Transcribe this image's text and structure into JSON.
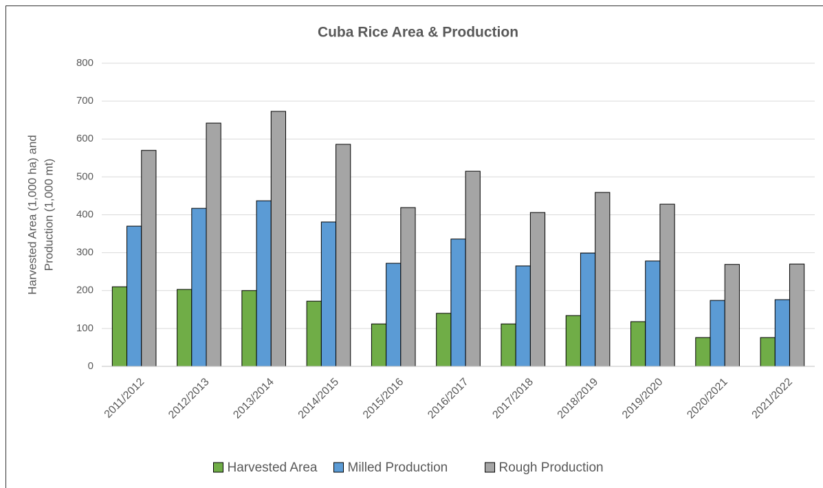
{
  "chart_data": {
    "type": "bar",
    "title": "Cuba Rice Area & Production",
    "y_label": [
      "Harvested Area (1,000 ha) and",
      "Production (1,000 mt)"
    ],
    "categories": [
      "2011/2012",
      "2012/2013",
      "2013/2014",
      "2014/2015",
      "2015/2016",
      "2016/2017",
      "2017/2018",
      "2018/2019",
      "2019/2020",
      "2020/2021",
      "2021/2022"
    ],
    "series": [
      {
        "name": "Harvested Area",
        "color": "#70ad47",
        "values": [
          210,
          203,
          200,
          172,
          112,
          140,
          112,
          134,
          118,
          76,
          76
        ]
      },
      {
        "name": "Milled Production",
        "color": "#5b9bd5",
        "values": [
          370,
          417,
          437,
          381,
          272,
          336,
          265,
          299,
          278,
          174,
          176
        ]
      },
      {
        "name": "Rough Production",
        "color": "#a5a5a5",
        "values": [
          570,
          642,
          673,
          586,
          419,
          515,
          406,
          459,
          428,
          269,
          270
        ]
      }
    ],
    "ylim": [
      0,
      800
    ],
    "yticks": [
      0,
      100,
      200,
      300,
      400,
      500,
      600,
      700,
      800
    ],
    "grid": true,
    "legend": "bottom"
  }
}
